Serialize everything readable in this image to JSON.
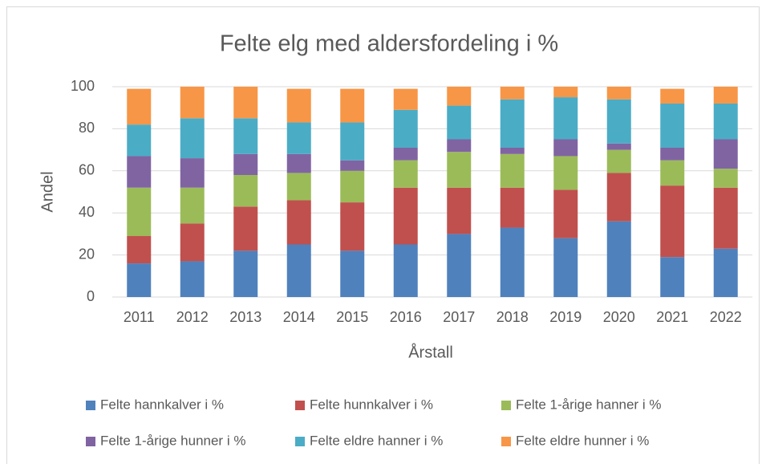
{
  "chart_data": {
    "type": "stacked_bar",
    "title": "Felte elg med aldersfordeling i %",
    "x_label": "Årstall",
    "y_label": "Andel",
    "categories": [
      "2011",
      "2012",
      "2013",
      "2014",
      "2015",
      "2016",
      "2017",
      "2018",
      "2019",
      "2020",
      "2021",
      "2022"
    ],
    "series": [
      {
        "name": "Felte hannkalver i %",
        "color": "#4f81bd",
        "values": [
          16,
          17,
          22,
          25,
          22,
          25,
          30,
          33,
          28,
          36,
          19,
          23
        ]
      },
      {
        "name": "Felte hunnkalver i %",
        "color": "#c0504d",
        "values": [
          13,
          18,
          21,
          21,
          23,
          27,
          22,
          19,
          23,
          23,
          34,
          29
        ]
      },
      {
        "name": "Felte 1-årige hanner i %",
        "color": "#9bbb59",
        "values": [
          23,
          17,
          15,
          13,
          15,
          13,
          17,
          16,
          16,
          11,
          12,
          9
        ]
      },
      {
        "name": "Felte 1-årige hunner i %",
        "color": "#8064a2",
        "values": [
          15,
          14,
          10,
          9,
          5,
          6,
          6,
          3,
          8,
          3,
          6,
          14
        ]
      },
      {
        "name": "Felte eldre hanner i %",
        "color": "#4bacc6",
        "values": [
          15,
          19,
          17,
          15,
          18,
          18,
          16,
          23,
          20,
          21,
          21,
          17
        ]
      },
      {
        "name": "Felte eldre hunner i %",
        "color": "#f79646",
        "values": [
          17,
          15,
          15,
          16,
          16,
          10,
          9,
          6,
          5,
          6,
          7,
          8
        ]
      }
    ],
    "ylim": [
      0,
      100
    ],
    "yticks": [
      0,
      20,
      40,
      60,
      80,
      100
    ],
    "grid": true,
    "legend": "bottom"
  }
}
